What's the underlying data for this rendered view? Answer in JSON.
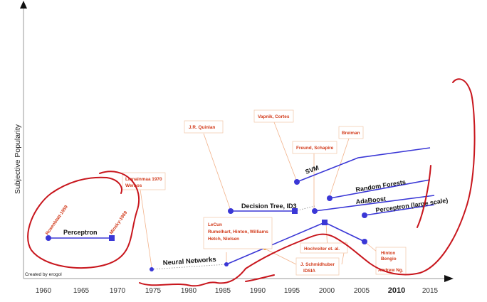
{
  "y_axis_label": "Subjective Popularity",
  "credit": "Created by erogol",
  "x_ticks": [
    "1960",
    "1965",
    "1970",
    "1975",
    "1980",
    "1985",
    "1990",
    "1995",
    "2000",
    "2005",
    "2010",
    "2015"
  ],
  "series": {
    "perceptron": "Perceptron",
    "neural_networks": "Neural Networks",
    "decision_tree": "Decision Tree, ID3",
    "svm": "SVM",
    "random_forests": "Random Forests",
    "adaboost": "AdaBoost",
    "perceptron_large": "Perceptron (large scale)"
  },
  "annotations": {
    "rosenblatt": "Rosenblatt-1959",
    "minsky": "Minsky-1969",
    "linnainmaa": [
      "Linnainmaa 1970",
      "Werbos"
    ],
    "quinlan": "J.R. Quinlan",
    "vapnik": "Vapnik, Cortes",
    "freund": "Freund, Schapire",
    "breiman": "Breiman",
    "lecun": [
      "LeCun",
      "Rumelhart, Hinton, Williams",
      "Hetch, Nielsen"
    ],
    "hochreiter": "Hochreiter et. al.",
    "schmidhuber": [
      "J. Schmidhuber",
      "IDSIA"
    ],
    "hinton": [
      "Hinton",
      "Bengio",
      "",
      "Andrew Ng."
    ]
  },
  "colors": {
    "series": "#3a37d6",
    "annotation": "#d23a1a",
    "sketch": "#c8161d",
    "leader": "#f2b28a"
  }
}
